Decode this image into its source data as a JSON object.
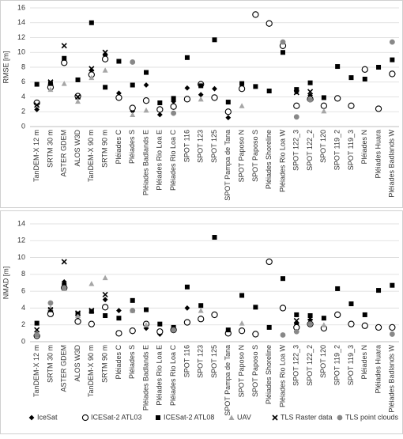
{
  "chart_data": [
    {
      "type": "scatter",
      "ylabel": "RMSE [m]",
      "ylim": [
        0,
        16
      ],
      "yticks": [
        0,
        2,
        4,
        6,
        8,
        10,
        12,
        14,
        16
      ],
      "grid": true,
      "categories": [
        "TanDEM-X 12 m",
        "SRTM 30 m",
        "ASTER GDEM",
        "ALOS W3D",
        "TanDEM-X  90 m",
        "SRTM  90 m",
        "Pléiades C",
        "Pléiades S",
        "Pléiades Badlands E",
        "Pléiades Rio Loa E",
        "Pléiades Rio Loa C",
        "SPOT 116",
        "SPOT 123",
        "SPOT 125",
        "SPOT Pampa de Tana",
        "SPOT Paposo N",
        "SPOT Paposo S",
        "Pléiades Shoreline",
        "Pléiades Rio Loa W",
        "SPOT 122_3",
        "SPOT 122_2",
        "SPOT 120",
        "SPOT 119_2",
        "SPOT 119_3",
        "Pléiades N",
        "Pléiades Huara",
        "Pléiades Badlands W"
      ],
      "series": [
        {
          "marker": "diamond",
          "color": "#000000",
          "values": [
            2.3,
            5.6,
            null,
            4.0,
            7.6,
            9.6,
            4.5,
            2.1,
            5.6,
            1.6,
            3.4,
            5.2,
            4.3,
            5.1,
            1.2,
            null,
            null,
            null,
            null,
            4.7,
            4.2,
            null,
            null,
            null,
            null,
            null,
            null
          ]
        },
        {
          "marker": "circle",
          "color": "#000000",
          "values": [
            3.2,
            5.3,
            8.6,
            4.1,
            7.0,
            9.1,
            3.9,
            2.5,
            3.5,
            2.3,
            2.7,
            3.7,
            5.7,
            3.9,
            2.0,
            5.1,
            15.1,
            13.9,
            10.9,
            2.8,
            3.7,
            2.8,
            3.8,
            2.8,
            7.7,
            2.4,
            7.1
          ]
        },
        {
          "marker": "square",
          "color": "#000000",
          "values": [
            5.7,
            5.8,
            9.2,
            6.3,
            14.0,
            5.3,
            8.8,
            5.6,
            7.3,
            3.2,
            3.8,
            9.3,
            5.5,
            11.7,
            3.3,
            5.8,
            5.4,
            4.8,
            10.0,
            5.0,
            5.9,
            3.9,
            8.1,
            6.6,
            6.4,
            8.0,
            9.0
          ]
        },
        {
          "marker": "triangle",
          "color": "#a6a6a6",
          "values": [
            null,
            5.0,
            5.8,
            3.4,
            6.6,
            7.6,
            null,
            1.6,
            2.2,
            null,
            null,
            null,
            3.7,
            null,
            null,
            2.8,
            null,
            null,
            null,
            null,
            null,
            2.1,
            null,
            null,
            null,
            null,
            null
          ]
        },
        {
          "marker": "x",
          "color": "#000000",
          "values": [
            2.9,
            6.0,
            10.9,
            4.0,
            7.8,
            10.0,
            null,
            null,
            null,
            null,
            null,
            null,
            null,
            null,
            null,
            null,
            null,
            null,
            null,
            4.6,
            4.7,
            null,
            null,
            null,
            null,
            null,
            null
          ]
        },
        {
          "marker": "dot",
          "color": "#888888",
          "values": [
            null,
            null,
            null,
            null,
            null,
            null,
            null,
            8.7,
            null,
            null,
            1.8,
            null,
            null,
            null,
            null,
            null,
            null,
            null,
            11.4,
            1.3,
            3.6,
            null,
            null,
            null,
            null,
            null,
            11.4
          ]
        }
      ]
    },
    {
      "type": "scatter",
      "ylabel": "NMAD [m]",
      "ylim": [
        0,
        14
      ],
      "yticks": [
        0,
        2,
        4,
        6,
        8,
        10,
        12,
        14
      ],
      "grid": true,
      "categories": [
        "TanDEM-X 12 m",
        "SRTM 30 m",
        "ASTER GDEM",
        "ALOS W3D",
        "TanDEM-X  90 m",
        "SRTM  90 m",
        "Pléiades C",
        "Pléiades S",
        "Pléiades Badlands E",
        "Pléiades Rio Loa E",
        "Pléiades Rio Loa C",
        "SPOT 116",
        "SPOT 123",
        "SPOT 125",
        "SPOT Pampa de Tana",
        "SPOT Paposo N",
        "SPOT Paposo S",
        "Pléiades Shoreline",
        "Pléiades Rio Loa W",
        "SPOT 122_3",
        "SPOT 122_2",
        "SPOT 120",
        "SPOT 119_2",
        "SPOT 119_3",
        "Pléiades N",
        "Pléiades Huara",
        "Pléiades Badlands W"
      ],
      "series": [
        {
          "name": "IceSat",
          "marker": "diamond",
          "color": "#000000",
          "values": [
            0.9,
            3.7,
            7.1,
            2.6,
            2.1,
            5.0,
            3.7,
            1.2,
            1.6,
            0.9,
            1.4,
            4.0,
            2.8,
            3.2,
            1.1,
            null,
            null,
            null,
            null,
            2.1,
            2.6,
            null,
            null,
            null,
            null,
            null,
            null
          ]
        },
        {
          "name": "ICESat-2 ATL03",
          "marker": "circle",
          "color": "#000000",
          "values": [
            0.7,
            3.3,
            6.4,
            2.4,
            2.1,
            4.1,
            1.0,
            1.3,
            2.1,
            1.2,
            1.4,
            2.3,
            2.7,
            3.2,
            1.0,
            1.3,
            0.9,
            9.5,
            4.0,
            1.7,
            2.1,
            1.6,
            3.2,
            2.1,
            1.9,
            1.7,
            1.7
          ]
        },
        {
          "name": "ICESat-2 ATL08",
          "marker": "square",
          "color": "#000000",
          "values": [
            2.2,
            3.8,
            6.7,
            3.3,
            3.6,
            3.1,
            2.8,
            4.9,
            3.8,
            2.1,
            1.7,
            6.5,
            4.3,
            12.4,
            1.4,
            5.5,
            4.1,
            1.7,
            7.5,
            3.2,
            3.1,
            2.8,
            6.3,
            4.5,
            3.2,
            6.1,
            6.7
          ]
        },
        {
          "name": "UAV",
          "marker": "triangle",
          "color": "#a6a6a6",
          "values": [
            null,
            4.0,
            6.3,
            3.1,
            6.9,
            7.6,
            null,
            3.7,
            2.0,
            null,
            null,
            null,
            3.7,
            null,
            null,
            2.2,
            null,
            null,
            null,
            null,
            null,
            2.0,
            null,
            null,
            null,
            null,
            null
          ]
        },
        {
          "name": "TLS Raster data",
          "marker": "x",
          "color": "#000000",
          "values": [
            1.4,
            3.8,
            9.5,
            3.4,
            3.7,
            5.6,
            null,
            null,
            null,
            null,
            null,
            null,
            null,
            null,
            null,
            null,
            null,
            null,
            null,
            2.5,
            2.4,
            null,
            null,
            null,
            null,
            null,
            null
          ]
        },
        {
          "name": "TLS point clouds",
          "marker": "dot",
          "color": "#888888",
          "values": [
            0.8,
            4.6,
            6.4,
            null,
            null,
            null,
            null,
            3.7,
            null,
            null,
            1.4,
            null,
            null,
            null,
            null,
            null,
            null,
            null,
            0.8,
            1.2,
            2.1,
            null,
            null,
            null,
            null,
            null,
            0.9
          ]
        }
      ]
    }
  ]
}
